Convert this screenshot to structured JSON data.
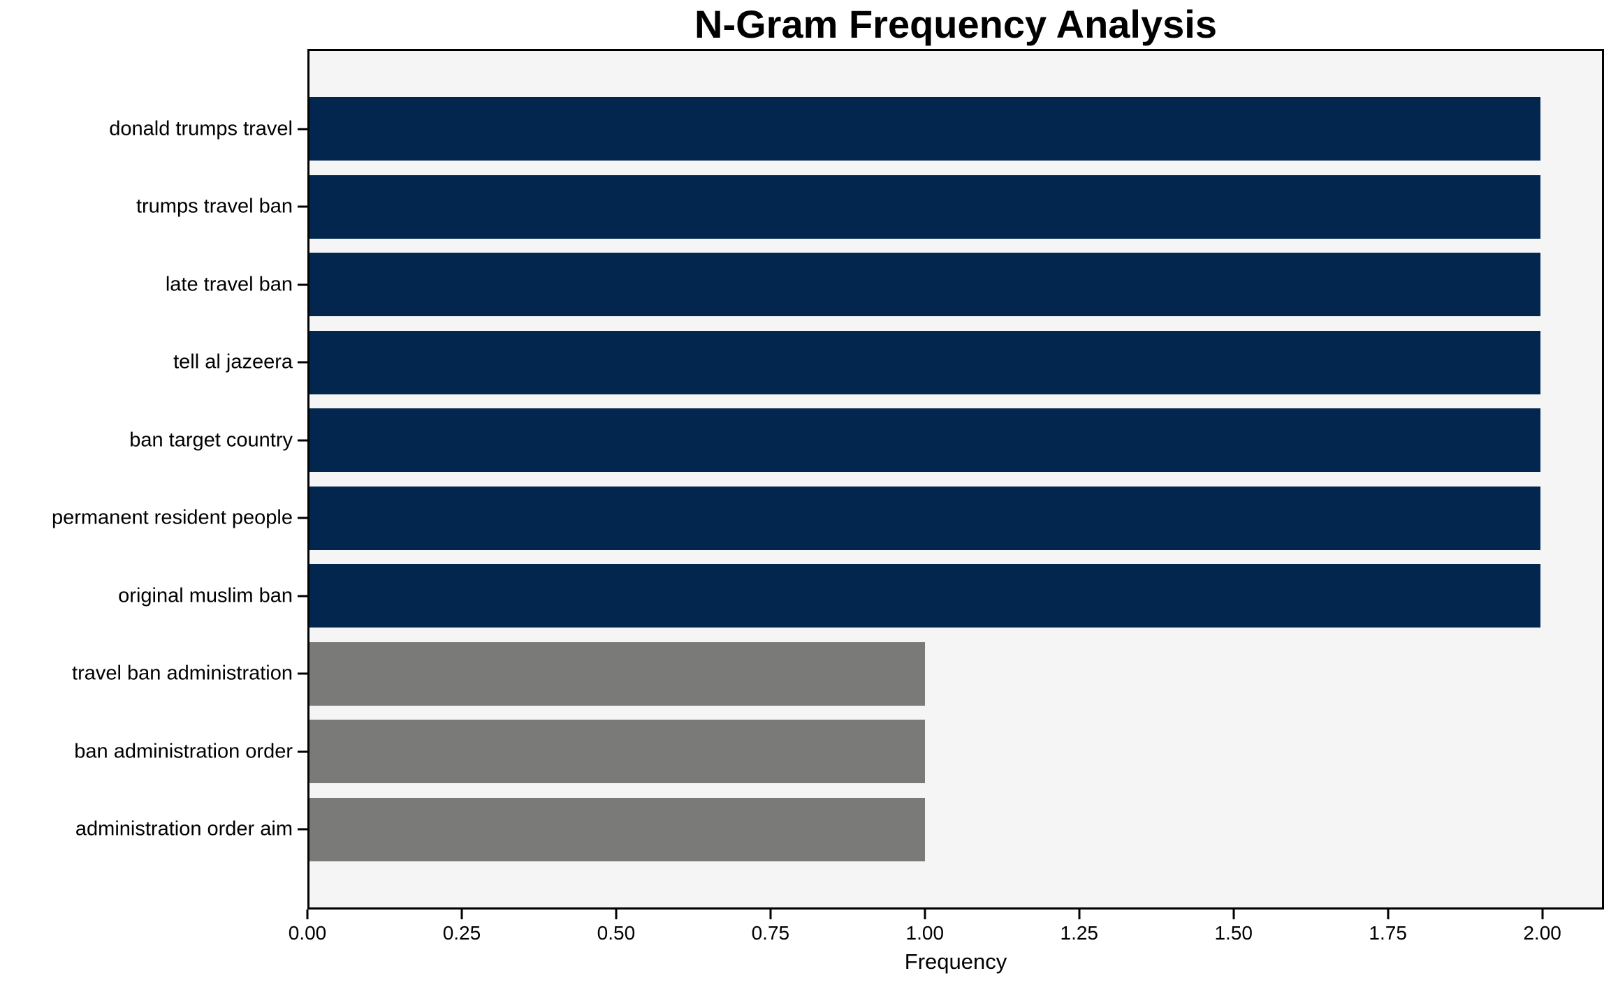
{
  "title": "N-Gram Frequency Analysis",
  "colors": {
    "bar_primary": "#02264e",
    "bar_secondary": "#7a7a78",
    "plot_background": "#f5f5f5",
    "figure_background": "#ffffff",
    "spine": "#000000",
    "text": "#000000"
  },
  "chart_data": {
    "type": "bar",
    "orientation": "horizontal",
    "title": "N-Gram Frequency Analysis",
    "xlabel": "Frequency",
    "ylabel": "",
    "categories": [
      "donald trumps travel",
      "trumps travel ban",
      "late travel ban",
      "tell al jazeera",
      "ban target country",
      "permanent resident people",
      "original muslim ban",
      "travel ban administration",
      "ban administration order",
      "administration order aim"
    ],
    "values": [
      2,
      2,
      2,
      2,
      2,
      2,
      2,
      1,
      1,
      1
    ],
    "bar_colors": [
      "#02264e",
      "#02264e",
      "#02264e",
      "#02264e",
      "#02264e",
      "#02264e",
      "#02264e",
      "#7a7a78",
      "#7a7a78",
      "#7a7a78"
    ],
    "xlim": [
      0,
      2.1
    ],
    "xticks": [
      {
        "value": 0.0,
        "label": "0.00"
      },
      {
        "value": 0.25,
        "label": "0.25"
      },
      {
        "value": 0.5,
        "label": "0.50"
      },
      {
        "value": 0.75,
        "label": "0.75"
      },
      {
        "value": 1.0,
        "label": "1.00"
      },
      {
        "value": 1.25,
        "label": "1.25"
      },
      {
        "value": 1.5,
        "label": "1.50"
      },
      {
        "value": 1.75,
        "label": "1.75"
      },
      {
        "value": 2.0,
        "label": "2.00"
      }
    ],
    "grid": false,
    "legend": null
  }
}
